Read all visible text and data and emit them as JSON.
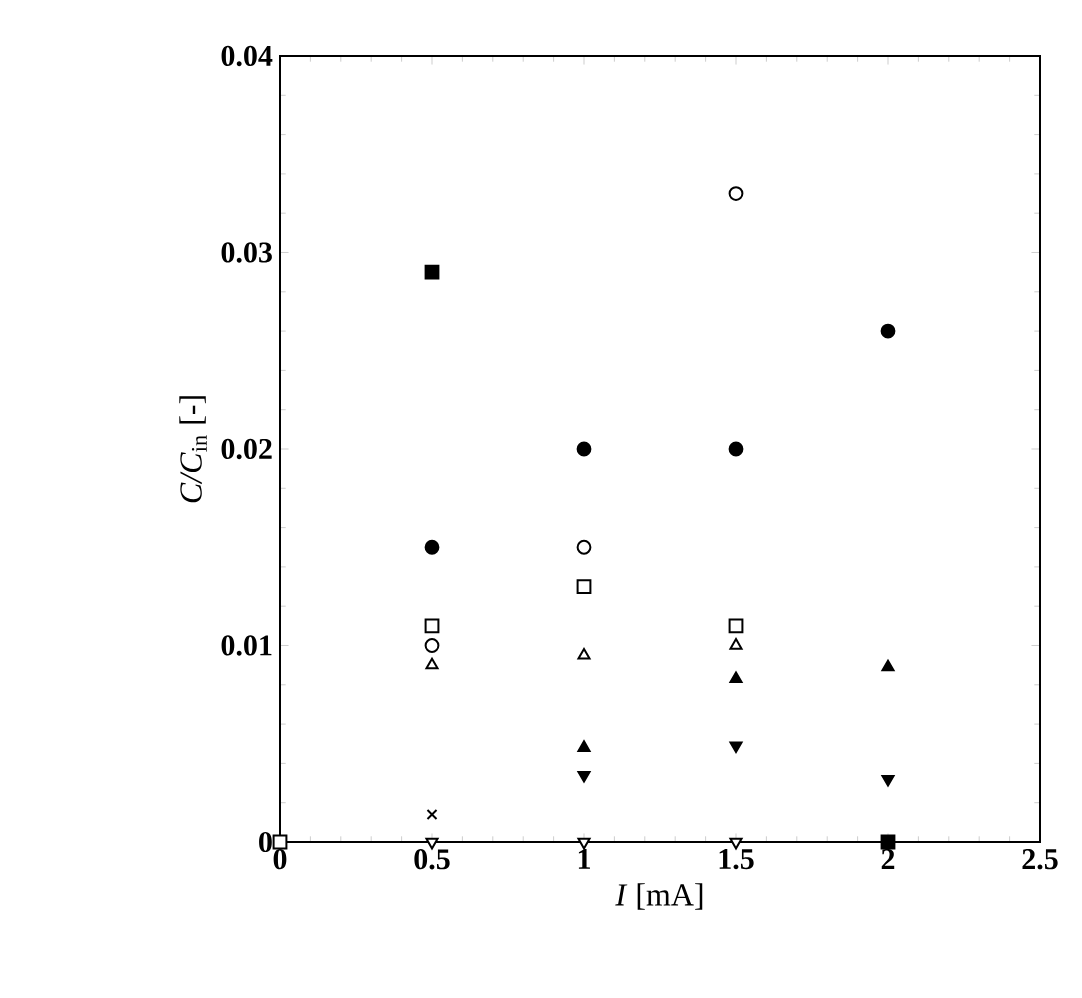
{
  "chart_data": {
    "type": "scatter",
    "xlabel": "*I* [mA]",
    "ylabel": "*C/C*$_{in}$ [-]",
    "xlim": [
      0,
      2.5
    ],
    "ylim": [
      0,
      0.04
    ],
    "xticks": [
      0,
      0.5,
      1,
      1.5,
      2,
      2.5
    ],
    "yticks": [
      0,
      0.01,
      0.02,
      0.03,
      0.04
    ],
    "grid": false,
    "series": [
      {
        "color": "#000000",
        "marker": "square",
        "x": [
          0.5,
          2
        ],
        "values": [
          0.029,
          0
        ]
      },
      {
        "color": "#000000",
        "marker": "circle",
        "x": [
          0.5,
          1,
          1.5,
          2
        ],
        "values": [
          0.015,
          0.02,
          0.02,
          0.026
        ]
      },
      {
        "color": "#ffffff",
        "marker": "circle",
        "x": [
          0.5,
          1,
          1.5
        ],
        "values": [
          0.01,
          0.015,
          0.033
        ]
      },
      {
        "color": "#ffffff",
        "marker": "square",
        "x": [
          0,
          0.5,
          1,
          1.5
        ],
        "values": [
          0,
          0.011,
          0.013,
          0.011
        ]
      },
      {
        "color": "#ffffff",
        "marker": "triangle",
        "x": [
          0.5,
          1,
          1.5
        ],
        "values": [
          0.009,
          0.0095,
          0.01
        ]
      },
      {
        "color": "#000000",
        "marker": "triangle",
        "x": [
          1,
          1.5,
          2
        ],
        "values": [
          0.0048,
          0.0083,
          0.0089
        ]
      },
      {
        "color": "#000000",
        "marker": "triangle down",
        "x": [
          1,
          1.5,
          2
        ],
        "values": [
          0.0034,
          0.0049,
          0.0032
        ]
      },
      {
        "color": "#ffffff",
        "marker": "triangle down",
        "x": [
          0.5,
          1,
          1.5
        ],
        "values": [
          0,
          0,
          0
        ]
      },
      {
        "color": "#000000",
        "marker": "cross",
        "x": [
          0.5
        ],
        "values": [
          0.0014
        ]
      }
    ]
  }
}
